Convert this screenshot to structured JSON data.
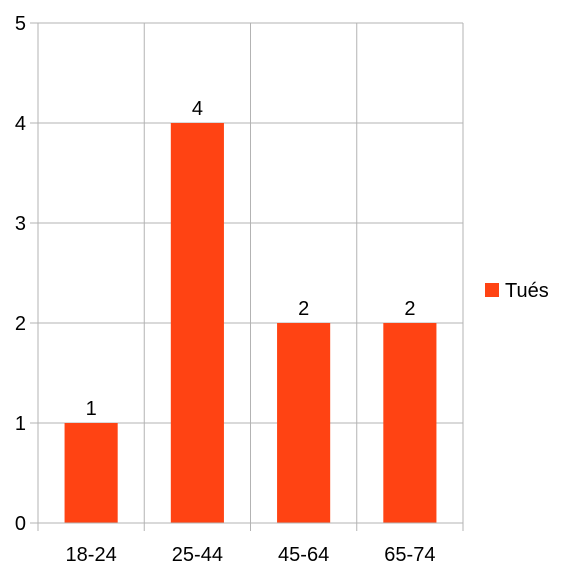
{
  "chart_data": {
    "type": "bar",
    "categories": [
      "18-24",
      "25-44",
      "45-64",
      "65-74"
    ],
    "series": [
      {
        "name": "Tués",
        "values": [
          1,
          4,
          2,
          2
        ],
        "color": "#ff4313"
      }
    ],
    "ylim": [
      0,
      5
    ],
    "yticks": [
      0,
      1,
      2,
      3,
      4,
      5
    ],
    "grid": true,
    "data_labels": true,
    "legend_position": "right",
    "title": "",
    "xlabel": "",
    "ylabel": ""
  }
}
